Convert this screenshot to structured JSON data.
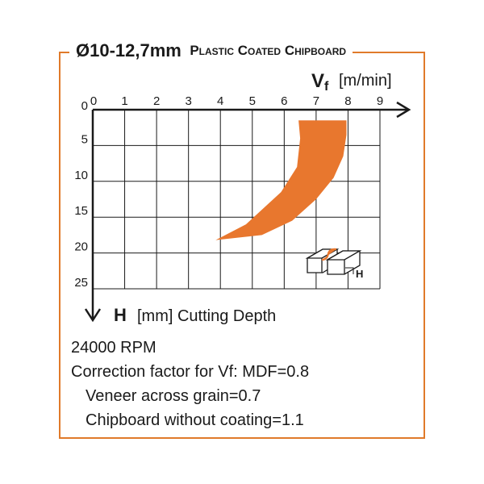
{
  "header": {
    "title_main": "Ø10-12,7mm",
    "title_sub": "Plastic Coated Chipboard"
  },
  "chart_data": {
    "type": "area",
    "xlabel_symbol": "V",
    "xlabel_subscript": "f",
    "xlabel_unit": "[m/min]",
    "ylabel_symbol": "H",
    "ylabel_text": "[mm] Cutting Depth",
    "x_ticks": [
      "0",
      "1",
      "2",
      "3",
      "4",
      "5",
      "6",
      "7",
      "8",
      "9"
    ],
    "y_ticks": [
      "0",
      "5",
      "10",
      "15",
      "20",
      "25"
    ],
    "xlim": [
      0,
      9
    ],
    "ylim": [
      0,
      25
    ],
    "ylim_inverted": true,
    "grid": true,
    "fill_color": "#e8772e",
    "region": [
      [
        6.45,
        1.5
      ],
      [
        7.95,
        1.5
      ],
      [
        7.95,
        3.5
      ],
      [
        7.85,
        6.5
      ],
      [
        7.55,
        9.5
      ],
      [
        7.0,
        12.5
      ],
      [
        6.25,
        15.5
      ],
      [
        5.3,
        17.5
      ],
      [
        3.85,
        18.2
      ],
      [
        4.8,
        16.0
      ],
      [
        5.9,
        11.5
      ],
      [
        6.4,
        8.0
      ],
      [
        6.5,
        4.0
      ]
    ]
  },
  "notes": {
    "rpm": "24000 RPM",
    "correction": "Correction factor for Vf: MDF=0.8",
    "veneer": "Veneer across grain=0.7",
    "chipboard": "Chipboard without coating=1.1"
  },
  "inset": {
    "label": "H"
  }
}
